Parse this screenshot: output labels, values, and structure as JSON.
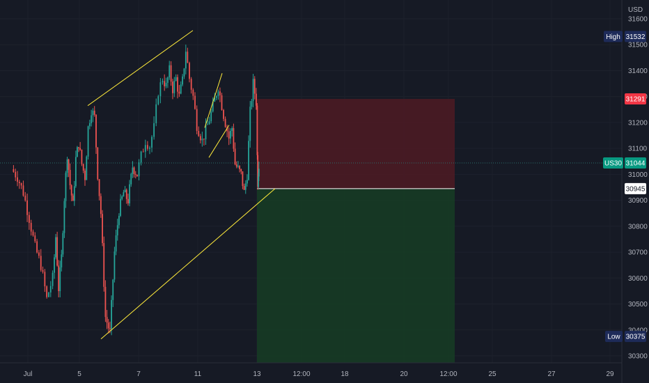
{
  "chart_data": {
    "type": "candlestick",
    "currency": "USD",
    "symbol": "US30",
    "x_ticks": [
      "Jul",
      "5",
      "7",
      "11",
      "13",
      "12:00",
      "18",
      "20",
      "12:00",
      "25",
      "27",
      "29"
    ],
    "y_ticks": [
      30300,
      30400,
      30500,
      30600,
      30700,
      30800,
      30900,
      31000,
      31100,
      31200,
      31300,
      31400,
      31500,
      31600
    ],
    "ylim": [
      30245,
      31650
    ],
    "markers": {
      "high": {
        "label": "High",
        "value": 31532
      },
      "low": {
        "label": "Low",
        "value": 30375
      },
      "stop": {
        "value": 31291
      },
      "current": {
        "label": "US30",
        "value": 31044
      },
      "entry": {
        "value": 30945
      }
    },
    "colors": {
      "background": "#161a25",
      "up": "#26a69a",
      "down": "#ef5350",
      "trendline": "#ffeb3b",
      "risk_zone": "#4a1b24",
      "reward_zone": "#163d24",
      "high_low_tag": "#1e2b59",
      "stop_tag": "#f23645",
      "current_tag": "#089981",
      "entry_tag": "#ffffff"
    },
    "trade_box": {
      "entry": 30945,
      "stop": 31291,
      "target_below_view": true
    },
    "trendlines": [
      {
        "name": "upper-channel",
        "points": [
          [
            "Jul 5",
            31265
          ],
          [
            "Jul 10",
            31555
          ]
        ]
      },
      {
        "name": "lower-channel",
        "points": [
          [
            "Jul 6",
            30365
          ],
          [
            "Jul 13",
            30945
          ]
        ]
      },
      {
        "name": "flag-upper",
        "points": [
          [
            "Jul 11",
            31180
          ],
          [
            "Jul 11",
            31390
          ]
        ]
      },
      {
        "name": "flag-lower",
        "points": [
          [
            "Jul 11",
            31065
          ],
          [
            "Jul 12",
            31190
          ]
        ]
      }
    ],
    "price_path": [
      [
        "Jul 1",
        31020
      ],
      [
        "Jul 1",
        30990
      ],
      [
        "Jul 1",
        30930
      ],
      [
        "Jul 1",
        30830
      ],
      [
        "Jul 1",
        30720
      ],
      [
        "Jul 1",
        30650
      ],
      [
        "Jul 1",
        30520
      ],
      [
        "Jul 4",
        30600
      ],
      [
        "Jul 4",
        30760
      ],
      [
        "Jul 4",
        30560
      ],
      [
        "Jul 4",
        30680
      ],
      [
        "Jul 4",
        30910
      ],
      [
        "Jul 4",
        31080
      ],
      [
        "Jul 4",
        30960
      ],
      [
        "Jul 4",
        30880
      ],
      [
        "Jul 4",
        31060
      ],
      [
        "Jul 5",
        31120
      ],
      [
        "Jul 5",
        31040
      ],
      [
        "Jul 5",
        30990
      ],
      [
        "Jul 5",
        31180
      ],
      [
        "Jul 5",
        31250
      ],
      [
        "Jul 5",
        31220
      ],
      [
        "Jul 5",
        31000
      ],
      [
        "Jul 6",
        30850
      ],
      [
        "Jul 6",
        30450
      ],
      [
        "Jul 6",
        30390
      ],
      [
        "Jul 6",
        30700
      ],
      [
        "Jul 6",
        30860
      ],
      [
        "Jul 6",
        30930
      ],
      [
        "Jul 6",
        30900
      ],
      [
        "Jul 6",
        31030
      ],
      [
        "Jul 7",
        31000
      ],
      [
        "Jul 7",
        31070
      ],
      [
        "Jul 7",
        31130
      ],
      [
        "Jul 7",
        31110
      ],
      [
        "Jul 7",
        31180
      ],
      [
        "Jul 7",
        31320
      ],
      [
        "Jul 8",
        31370
      ],
      [
        "Jul 8",
        31340
      ],
      [
        "Jul 8",
        31400
      ],
      [
        "Jul 8",
        31330
      ],
      [
        "Jul 8",
        31370
      ],
      [
        "Jul 8",
        31300
      ],
      [
        "Jul 8",
        31360
      ],
      [
        "Jul 10",
        31480
      ],
      [
        "Jul 10",
        31370
      ],
      [
        "Jul 10",
        31300
      ],
      [
        "Jul 11",
        31190
      ],
      [
        "Jul 11",
        31130
      ],
      [
        "Jul 11",
        31190
      ],
      [
        "Jul 11",
        31260
      ],
      [
        "Jul 11",
        31340
      ],
      [
        "Jul 11",
        31230
      ],
      [
        "Jul 12",
        31140
      ],
      [
        "Jul 12",
        31180
      ],
      [
        "Jul 12",
        31040
      ],
      [
        "Jul 12",
        31020
      ],
      [
        "Jul 12",
        31000
      ],
      [
        "Jul 12",
        30930
      ],
      [
        "Jul 12",
        31000
      ],
      [
        "Jul 12",
        31240
      ],
      [
        "Jul 12",
        31350
      ],
      [
        "Jul 13",
        31280
      ],
      [
        "Jul 13",
        31070
      ],
      [
        "Jul 13",
        30970
      ],
      [
        "Jul 13",
        31010
      ],
      [
        "Jul 13",
        31044
      ]
    ]
  }
}
